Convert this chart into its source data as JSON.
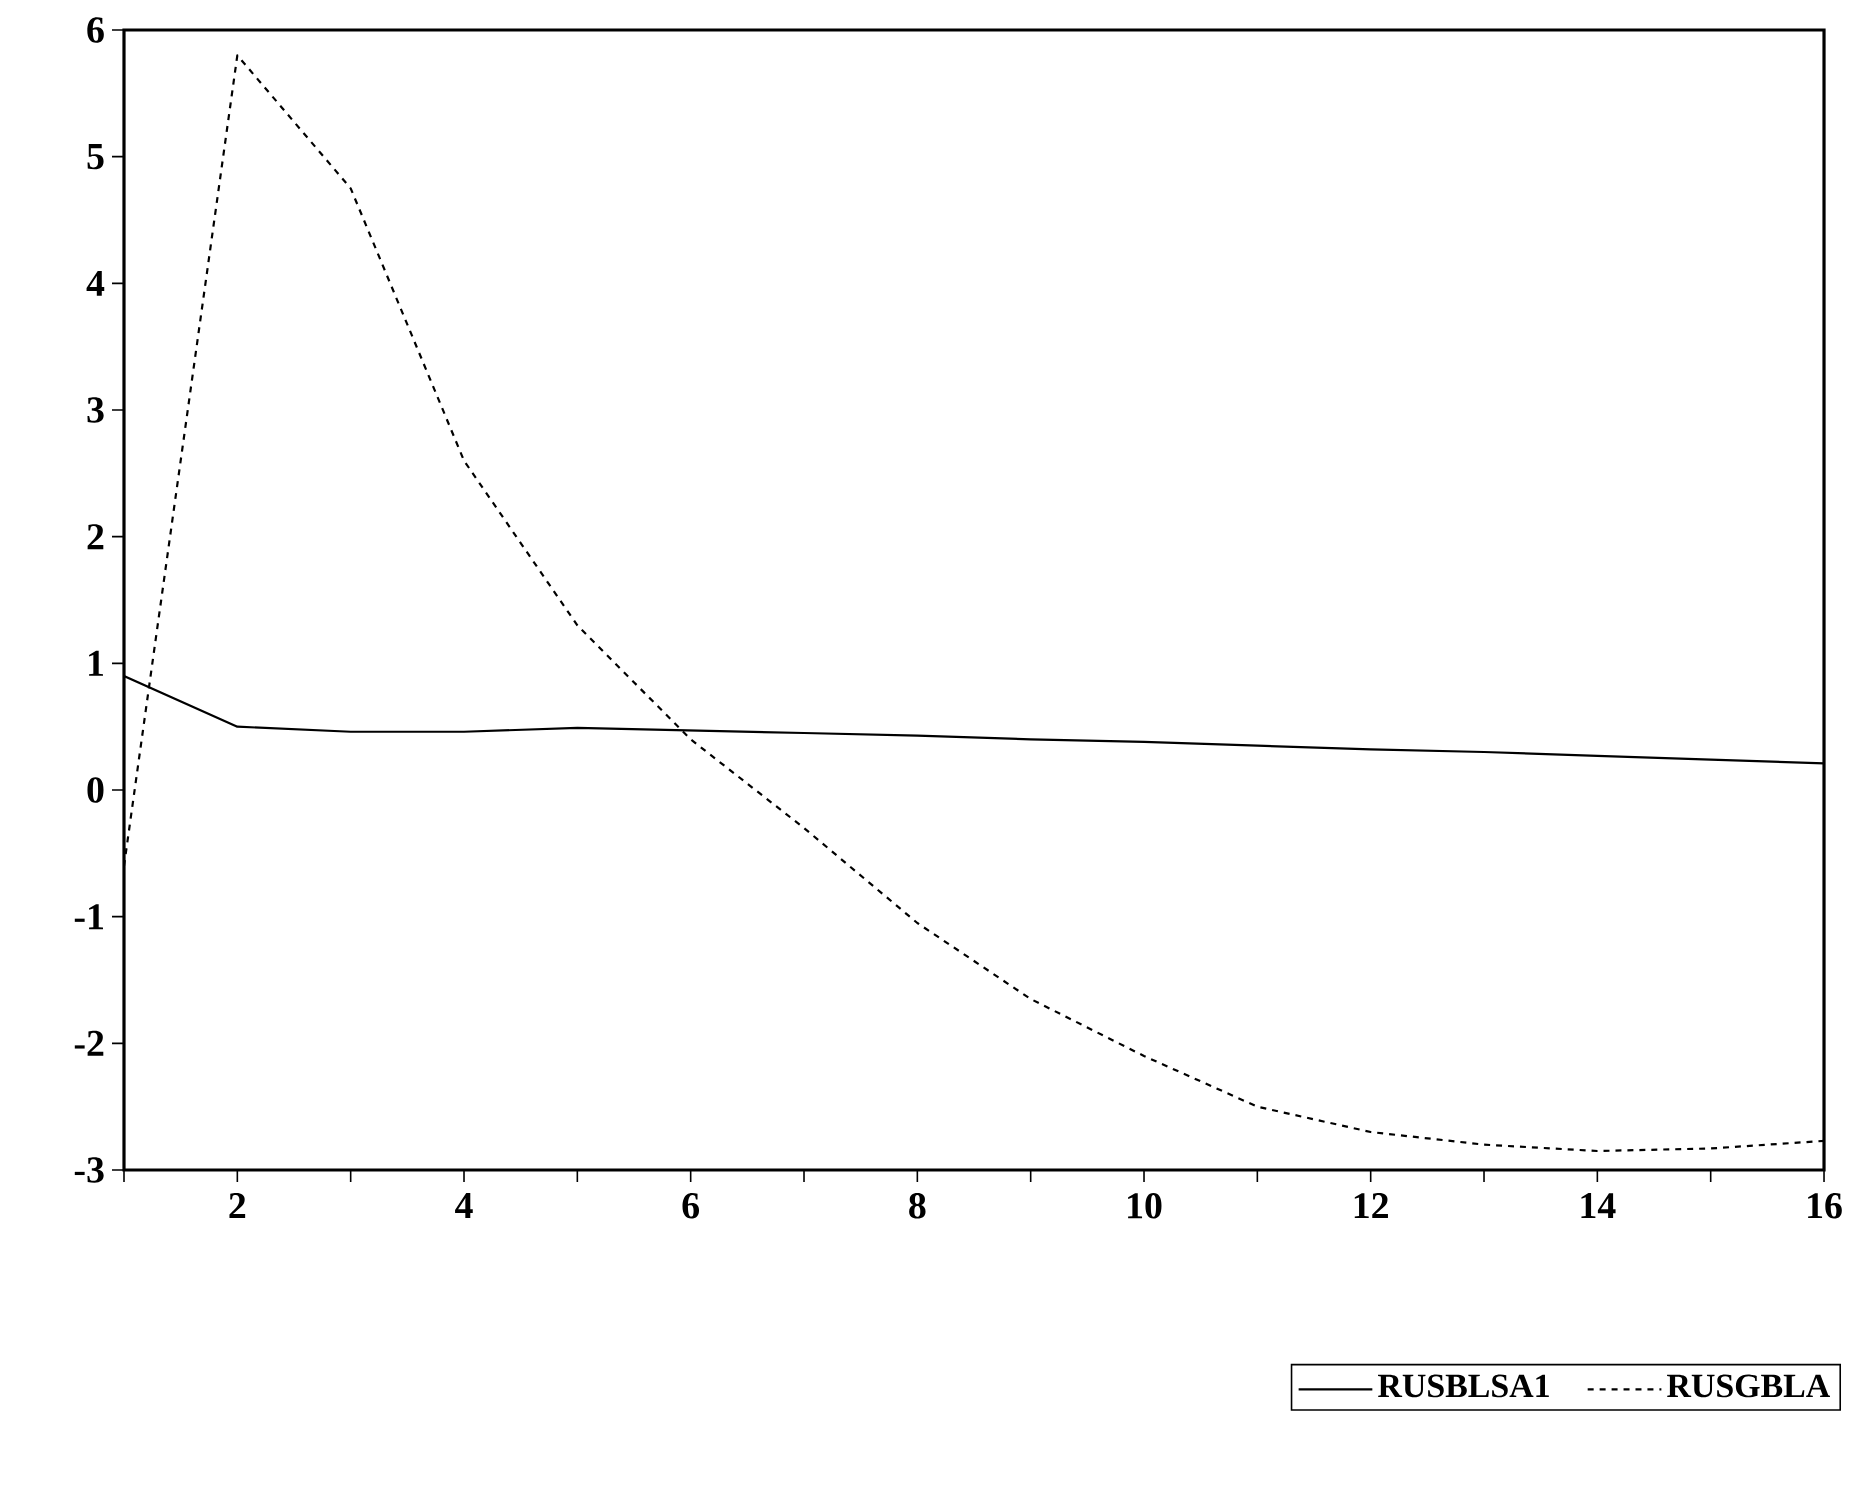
{
  "chart_data": {
    "type": "line",
    "x": [
      1,
      2,
      3,
      4,
      5,
      6,
      7,
      8,
      9,
      10,
      11,
      12,
      13,
      14,
      15,
      16
    ],
    "series": [
      {
        "name": "RUSBLSA1",
        "color": "#000000",
        "line_style": "solid",
        "values": [
          0.9,
          0.5,
          0.46,
          0.46,
          0.49,
          0.47,
          0.45,
          0.43,
          0.4,
          0.38,
          0.35,
          0.32,
          0.3,
          0.27,
          0.24,
          0.21
        ]
      },
      {
        "name": "RUSGBLA",
        "color": "#000000",
        "line_style": "dashed",
        "values": [
          -0.6,
          5.8,
          4.75,
          2.6,
          1.3,
          0.4,
          -0.3,
          -1.05,
          -1.65,
          -2.1,
          -2.5,
          -2.7,
          -2.8,
          -2.85,
          -2.83,
          -2.77
        ]
      }
    ],
    "xlim": [
      1,
      16
    ],
    "xticks": [
      {
        "value": 1,
        "label": null
      },
      2,
      {
        "value": 3,
        "label": null
      },
      4,
      {
        "value": 5,
        "label": null
      },
      6,
      {
        "value": 7,
        "label": null
      },
      8,
      {
        "value": 9,
        "label": null
      },
      10,
      {
        "value": 11,
        "label": null
      },
      12,
      {
        "value": 13,
        "label": null
      },
      14,
      {
        "value": 15,
        "label": null
      },
      16
    ],
    "ylim": [
      -3,
      6
    ],
    "yticks": [
      -3,
      -2,
      -1,
      0,
      1,
      2,
      3,
      4,
      5,
      6
    ],
    "grid": false,
    "legend": "bottom right",
    "marker": "none"
  }
}
